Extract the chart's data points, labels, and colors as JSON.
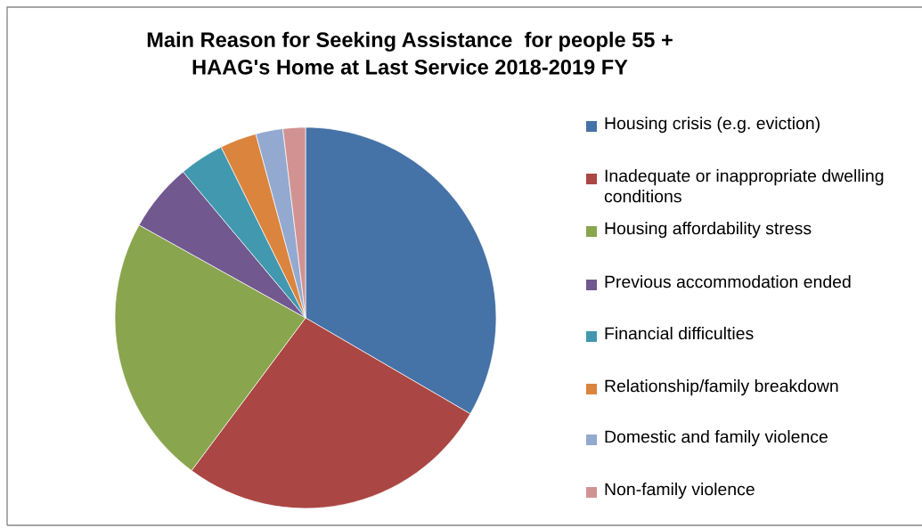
{
  "chart_data": {
    "type": "pie",
    "title": "Main Reason for Seeking Assistance  for people 55 +\nHAAG's Home at Last Service 2018-2019 FY",
    "categories": [
      "Housing crisis (e.g. eviction)",
      "Inadequate or inappropriate dwelling conditions",
      "Housing affordability stress",
      "Previous accommodation ended",
      "Financial difficulties",
      "Relationship/family breakdown",
      "Domestic and family violence",
      "Non-family violence"
    ],
    "values": [
      33.4,
      26.8,
      22.9,
      5.8,
      3.8,
      3.1,
      2.3,
      1.9
    ],
    "colors": [
      "#4572a7",
      "#aa4643",
      "#89a54e",
      "#71588f",
      "#4198af",
      "#db843d",
      "#93a9cf",
      "#d19392"
    ],
    "legend": "right"
  }
}
